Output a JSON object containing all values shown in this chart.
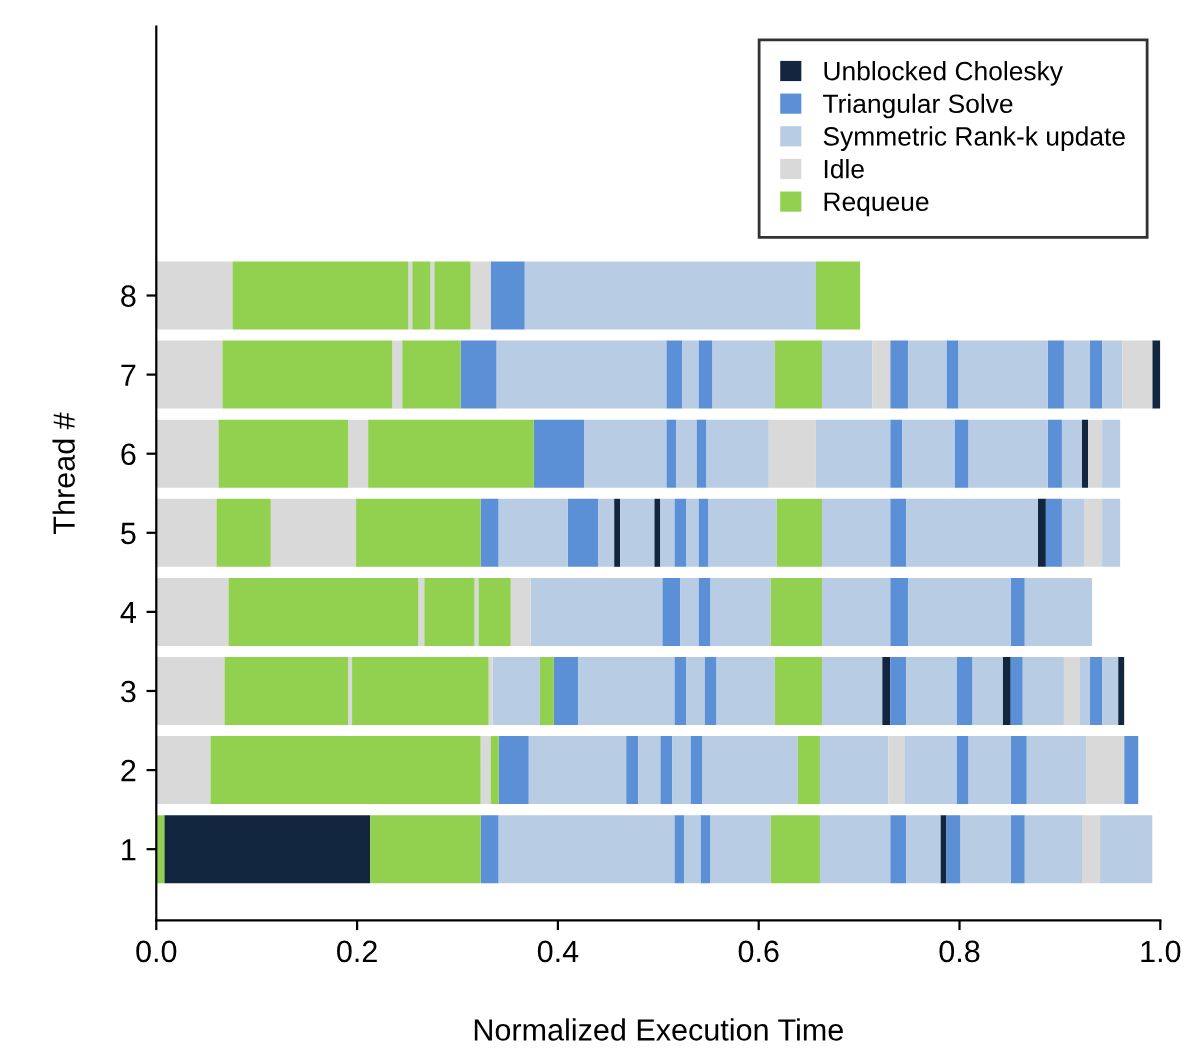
{
  "chart_data": {
    "type": "bar",
    "orientation": "horizontal",
    "xlabel": "Normalized Execution Time",
    "ylabel": "Thread #",
    "categories": [
      "8",
      "7",
      "6",
      "5",
      "4",
      "3",
      "2",
      "1"
    ],
    "xlim": [
      0,
      1
    ],
    "xticks": [
      {
        "value": 0,
        "label": "0.0"
      },
      {
        "value": 0.2,
        "label": "0.2"
      },
      {
        "value": 0.4,
        "label": "0.4"
      },
      {
        "value": 0.6,
        "label": "0.6"
      },
      {
        "value": 0.8,
        "label": "0.8"
      },
      {
        "value": 1,
        "label": "1.0"
      }
    ],
    "grid": false,
    "legend": "top right",
    "series": [
      {
        "name": "Unblocked Cholesky",
        "color": "#12263f",
        "base": [
          null,
          0.992,
          0.922,
          0.456,
          null,
          0.723,
          null,
          0.008
        ],
        "values": [
          null,
          0.008,
          0.006,
          0.006,
          null,
          0.008,
          null,
          0.205
        ]
      },
      {
        "color": "#12263f",
        "base": [
          null,
          null,
          null,
          0.496,
          null,
          0.843,
          null,
          0.781
        ],
        "values": [
          null,
          null,
          null,
          0.006,
          null,
          0.008,
          null,
          0.006
        ]
      },
      {
        "color": "#12263f",
        "base": [
          null,
          null,
          null,
          0.878,
          null,
          0.958,
          null,
          null
        ],
        "values": [
          null,
          null,
          null,
          0.008,
          null,
          0.006,
          null,
          null
        ]
      },
      {
        "name": "Triangular Solve",
        "color": "#5b8fd6",
        "base": [
          0.333,
          0.303,
          0.376,
          0.323,
          0.504,
          0.396,
          0.341,
          0.323
        ],
        "values": [
          0.034,
          0.036,
          0.05,
          0.018,
          0.018,
          0.024,
          0.03,
          0.018
        ]
      },
      {
        "color": "#5b8fd6",
        "base": [
          null,
          0.508,
          0.508,
          0.41,
          0.54,
          0.516,
          0.468,
          0.516
        ],
        "values": [
          null,
          0.016,
          0.01,
          0.03,
          0.012,
          0.012,
          0.012,
          0.01
        ]
      },
      {
        "color": "#5b8fd6",
        "base": [
          null,
          0.54,
          0.538,
          0.516,
          0.731,
          0.546,
          0.502,
          0.542
        ],
        "values": [
          null,
          0.014,
          0.01,
          0.012,
          0.018,
          0.012,
          0.012,
          0.01
        ]
      },
      {
        "color": "#5b8fd6",
        "base": [
          null,
          0.731,
          0.731,
          0.54,
          0.851,
          0.731,
          0.532,
          0.731
        ],
        "values": [
          null,
          0.018,
          0.012,
          0.01,
          0.014,
          0.016,
          0.012,
          0.016
        ]
      },
      {
        "color": "#5b8fd6",
        "base": [
          null,
          0.787,
          0.795,
          0.731,
          null,
          0.797,
          0.797,
          0.787
        ],
        "values": [
          null,
          0.012,
          0.014,
          0.016,
          null,
          0.016,
          0.012,
          0.014
        ]
      },
      {
        "color": "#5b8fd6",
        "base": [
          null,
          0.888,
          0.888,
          0.886,
          null,
          0.851,
          0.851,
          0.851
        ],
        "values": [
          null,
          0.016,
          0.014,
          0.016,
          null,
          0.012,
          0.016,
          0.014
        ]
      },
      {
        "color": "#5b8fd6",
        "base": [
          null,
          0.93,
          null,
          null,
          null,
          0.93,
          0.964,
          null
        ],
        "values": [
          null,
          0.012,
          null,
          null,
          null,
          0.012,
          0.014,
          null
        ]
      },
      {
        "name": "Symmetric Rank-k update",
        "color": "#b8cce4",
        "base": [
          0.367,
          0.339,
          0.426,
          0.341,
          0.373,
          0.335,
          0.371,
          0.341
        ],
        "values": [
          0.29,
          0.169,
          0.082,
          0.069,
          0.131,
          0.047,
          0.097,
          0.175
        ]
      },
      {
        "color": "#b8cce4",
        "base": [
          null,
          0.524,
          0.518,
          0.44,
          0.522,
          0.42,
          0.48,
          0.526
        ],
        "values": [
          null,
          0.016,
          0.02,
          0.016,
          0.018,
          0.096,
          0.022,
          0.016
        ]
      },
      {
        "color": "#b8cce4",
        "base": [
          null,
          0.554,
          0.548,
          0.462,
          0.552,
          0.528,
          0.514,
          0.552
        ],
        "values": [
          null,
          0.062,
          0.062,
          0.034,
          0.06,
          0.018,
          0.018,
          0.06
        ]
      },
      {
        "color": "#b8cce4",
        "base": [
          null,
          0.663,
          0.657,
          0.502,
          0.663,
          0.558,
          0.544,
          0.661
        ],
        "values": [
          null,
          0.05,
          0.074,
          0.014,
          0.068,
          0.058,
          0.095,
          0.07
        ]
      },
      {
        "color": "#b8cce4",
        "base": [
          null,
          0.749,
          0.743,
          0.528,
          0.749,
          0.663,
          0.661,
          0.747
        ],
        "values": [
          null,
          0.038,
          0.052,
          0.012,
          0.102,
          0.06,
          0.068,
          0.034
        ]
      },
      {
        "color": "#b8cce4",
        "base": [
          null,
          0.799,
          0.809,
          0.55,
          0.865,
          0.747,
          0.745,
          0.801
        ],
        "values": [
          null,
          0.089,
          0.079,
          0.068,
          0.067,
          0.05,
          0.052,
          0.05
        ]
      },
      {
        "color": "#b8cce4",
        "base": [
          null,
          0.904,
          0.902,
          0.663,
          null,
          0.813,
          0.809,
          0.865
        ],
        "values": [
          null,
          0.026,
          0.02,
          0.068,
          null,
          0.03,
          0.042,
          0.057
        ]
      },
      {
        "color": "#b8cce4",
        "base": [
          null,
          0.942,
          0.942,
          0.747,
          null,
          0.863,
          0.867,
          0.94
        ],
        "values": [
          null,
          0.02,
          0.018,
          0.131,
          null,
          0.041,
          0.059,
          0.052
        ]
      },
      {
        "color": "#b8cce4",
        "base": [
          null,
          null,
          null,
          0.902,
          null,
          0.92,
          null,
          null
        ],
        "values": [
          null,
          null,
          null,
          0.022,
          null,
          0.01,
          null,
          null
        ]
      },
      {
        "color": "#b8cce4",
        "base": [
          null,
          null,
          null,
          0.942,
          null,
          0.942,
          null,
          null
        ],
        "values": [
          null,
          null,
          null,
          0.018,
          null,
          0.016,
          null,
          null
        ]
      },
      {
        "name": "Idle",
        "color": "#d9d9d9",
        "base": [
          0,
          0,
          0,
          0,
          0,
          0,
          0,
          0.922
        ],
        "values": [
          0.076,
          0.066,
          0.062,
          0.06,
          0.072,
          0.068,
          0.054,
          0.018
        ]
      },
      {
        "color": "#d9d9d9",
        "base": [
          0.251,
          0.235,
          0.191,
          0.114,
          0.261,
          0.191,
          0.323,
          null
        ],
        "values": [
          0.004,
          0.01,
          0.02,
          0.085,
          0.006,
          0.004,
          0.01,
          null
        ]
      },
      {
        "color": "#d9d9d9",
        "base": [
          0.273,
          0.713,
          0.61,
          0.924,
          0.317,
          0.331,
          0.729,
          null
        ],
        "values": [
          0.004,
          0.018,
          0.047,
          0.018,
          0.004,
          0.004,
          0.016,
          null
        ]
      },
      {
        "color": "#d9d9d9",
        "base": [
          0.313,
          0.962,
          0.928,
          null,
          0.353,
          0.904,
          0.926,
          null
        ],
        "values": [
          0.02,
          0.03,
          0.014,
          null,
          0.02,
          0.016,
          0.038,
          null
        ]
      },
      {
        "name": "Requeue",
        "color": "#92d050",
        "base": [
          0.076,
          0.066,
          0.062,
          0.06,
          0.072,
          0.068,
          0.054,
          0
        ],
        "values": [
          0.175,
          0.169,
          0.129,
          0.054,
          0.189,
          0.123,
          0.269,
          0.008
        ]
      },
      {
        "color": "#92d050",
        "base": [
          0.255,
          0.245,
          0.211,
          0.199,
          0.267,
          0.195,
          0.333,
          0.213
        ],
        "values": [
          0.018,
          0.058,
          0.165,
          0.124,
          0.05,
          0.136,
          0.008,
          0.11
        ]
      },
      {
        "color": "#92d050",
        "base": [
          0.277,
          0.616,
          null,
          0.618,
          0.321,
          0.382,
          0.639,
          0.612
        ],
        "values": [
          0.036,
          0.047,
          null,
          0.045,
          0.032,
          0.014,
          0.022,
          0.049
        ]
      },
      {
        "color": "#92d050",
        "base": [
          0.657,
          null,
          null,
          null,
          0.612,
          0.616,
          null,
          null
        ],
        "values": [
          0.044,
          null,
          null,
          null,
          0.051,
          0.047,
          null,
          null
        ]
      }
    ]
  }
}
